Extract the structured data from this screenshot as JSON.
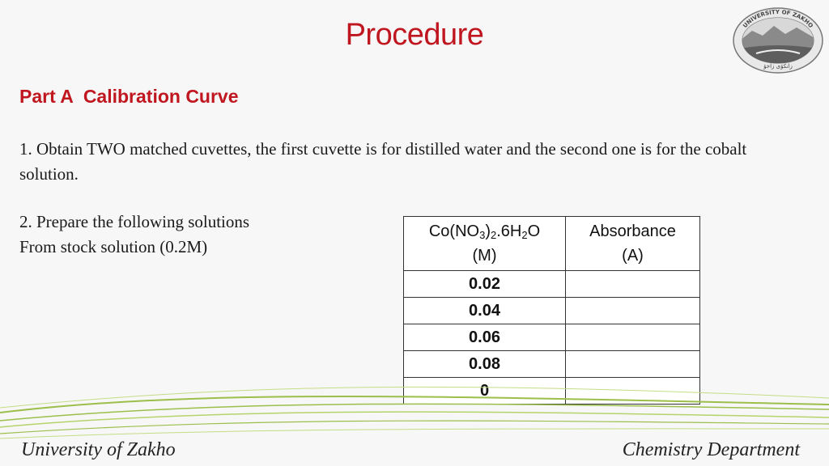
{
  "slide": {
    "title": "Procedure",
    "logo_text_top": "UNIVERSITY OF ZAKHO",
    "logo_text_bottom": "زانكۆی زاخۆ",
    "heading": "Part A  Calibration Curve",
    "step1": "1. Obtain TWO matched cuvettes, the first cuvette is for distilled water and the second one is for the cobalt solution.",
    "step2_line1": "2. Prepare the following solutions",
    "step2_line2": "From stock solution (0.2M)"
  },
  "table": {
    "col1_header_line1_prefix": "Co(NO",
    "col1_header_sub1": "3",
    "col1_header_mid": ")",
    "col1_header_sub2": "2",
    "col1_header_mid2": ".6H",
    "col1_header_sub3": "2",
    "col1_header_suffix": "O",
    "col1_header_line2": "(M)",
    "col2_header_line1": "Absorbance",
    "col2_header_line2": "(A)",
    "rows": [
      {
        "concentration": "0.02",
        "absorbance": ""
      },
      {
        "concentration": "0.04",
        "absorbance": ""
      },
      {
        "concentration": "0.06",
        "absorbance": ""
      },
      {
        "concentration": "0.08",
        "absorbance": ""
      },
      {
        "concentration": "0",
        "absorbance": ""
      }
    ]
  },
  "footer": {
    "left": "University of Zakho",
    "right": "Chemistry Department"
  },
  "colors": {
    "accent_red": "#c0161f",
    "swoosh_green": "#9bbf4a"
  }
}
